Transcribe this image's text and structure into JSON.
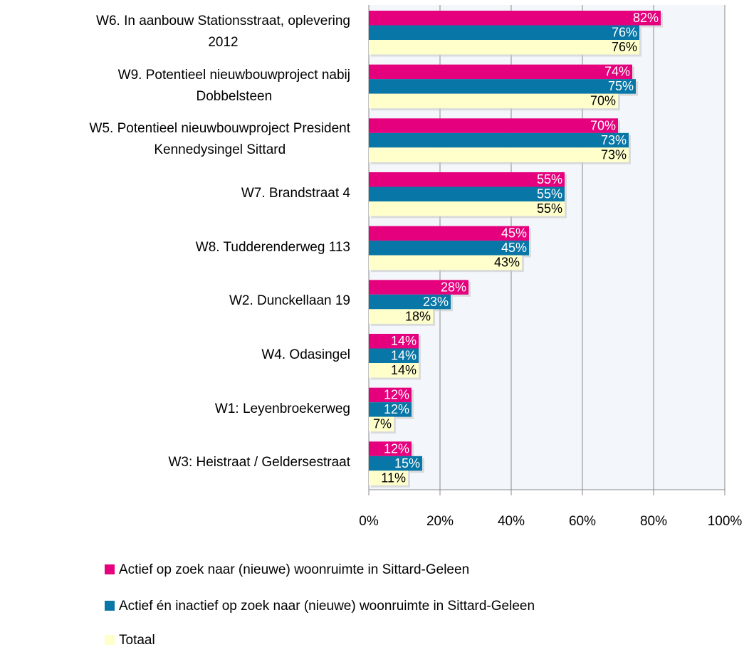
{
  "chart_data": {
    "type": "bar",
    "orientation": "horizontal",
    "categories": [
      "W6. In aanbouw Stationsstraat, oplevering\n2012",
      "W9. Potentieel nieuwbouwproject nabij\nDobbelsteen",
      "W5. Potentieel nieuwbouwproject President\nKennedysingel Sittard",
      "W7. Brandstraat 4",
      "W8. Tudderenderweg 113",
      "W2. Dunckellaan 19",
      "W4. Odasingel",
      "W1: Leyenbroekerweg",
      "W3: Heistraat / Geldersestraat"
    ],
    "series": [
      {
        "name": "Actief op zoek naar (nieuwe) woonruimte in Sittard-Geleen",
        "color": "#e5007d",
        "values": [
          82,
          74,
          70,
          55,
          45,
          28,
          14,
          12,
          12
        ],
        "value_labels": [
          "82%",
          "74%",
          "70%",
          "55%",
          "45%",
          "28%",
          "14%",
          "12%",
          "12%"
        ]
      },
      {
        "name": "Actief én inactief op zoek naar (nieuwe) woonruimte in Sittard-Geleen",
        "color": "#0876a6",
        "values": [
          76,
          75,
          73,
          55,
          45,
          23,
          14,
          12,
          15
        ],
        "value_labels": [
          "76%",
          "75%",
          "73%",
          "55%",
          "45%",
          "23%",
          "14%",
          "12%",
          "15%"
        ]
      },
      {
        "name": "Totaal",
        "color": "#ffffcc",
        "values": [
          76,
          70,
          73,
          55,
          43,
          18,
          14,
          7,
          11
        ],
        "value_labels": [
          "76%",
          "70%",
          "73%",
          "55%",
          "43%",
          "18%",
          "14%",
          "7%",
          "11%"
        ]
      }
    ],
    "xlim": [
      0,
      100
    ],
    "xticks": [
      {
        "value": 0,
        "label": "0%"
      },
      {
        "value": 20,
        "label": "20%"
      },
      {
        "value": 40,
        "label": "40%"
      },
      {
        "value": 60,
        "label": "60%"
      },
      {
        "value": 80,
        "label": "80%"
      },
      {
        "value": 100,
        "label": "100%"
      }
    ],
    "grid": true
  }
}
